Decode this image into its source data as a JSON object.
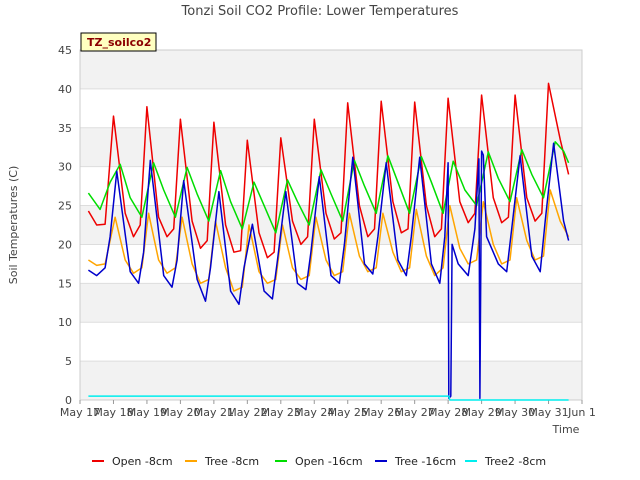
{
  "chart_data": {
    "type": "line",
    "title": "Tonzi Soil CO2 Profile: Lower Temperatures",
    "xlabel": "Time",
    "ylabel": "Soil Temperatures (C)",
    "site_badge": "TZ_soilco2",
    "ylim": [
      0,
      45
    ],
    "yticks": [
      0,
      5,
      10,
      15,
      20,
      25,
      30,
      35,
      40,
      45
    ],
    "xlim": [
      0,
      15
    ],
    "xticks": [
      0,
      1,
      2,
      3,
      4,
      5,
      6,
      7,
      8,
      9,
      10,
      11,
      12,
      13,
      14,
      15
    ],
    "xtick_labels": [
      "May 17",
      "May 18",
      "May 19",
      "May 20",
      "May 21",
      "May 22",
      "May 23",
      "May 24",
      "May 25",
      "May 26",
      "May 27",
      "May 28",
      "May 29",
      "May 30",
      "May 31",
      "Jun 1"
    ],
    "grid": true,
    "legend_position": "bottom",
    "series": [
      {
        "name": "Open -8cm",
        "color": "#ee0000",
        "x": [
          0.25,
          0.5,
          0.75,
          1.0,
          1.35,
          1.6,
          1.8,
          2.0,
          2.35,
          2.6,
          2.8,
          3.0,
          3.35,
          3.6,
          3.8,
          4.0,
          4.35,
          4.6,
          4.8,
          5.0,
          5.35,
          5.6,
          5.8,
          6.0,
          6.35,
          6.6,
          6.8,
          7.0,
          7.35,
          7.6,
          7.8,
          8.0,
          8.35,
          8.6,
          8.8,
          9.0,
          9.35,
          9.6,
          9.8,
          10.0,
          10.35,
          10.6,
          10.8,
          11.0,
          11.35,
          11.6,
          11.8,
          12.0,
          12.35,
          12.6,
          12.8,
          13.0,
          13.35,
          13.6,
          13.8,
          14.0,
          14.35,
          14.6
        ],
        "y": [
          24.3,
          22.5,
          22.6,
          36.5,
          24.0,
          21.0,
          22.5,
          37.7,
          23.5,
          21.0,
          22.0,
          36.1,
          23.0,
          19.5,
          20.5,
          35.7,
          22.5,
          19.0,
          19.2,
          33.4,
          21.5,
          18.3,
          19.0,
          33.7,
          23.0,
          20.0,
          21.0,
          36.1,
          24.0,
          20.7,
          21.5,
          38.2,
          25.0,
          21.0,
          22.0,
          38.4,
          25.5,
          21.5,
          22.0,
          38.3,
          25.0,
          21.0,
          22.0,
          38.8,
          25.5,
          22.8,
          24.0,
          39.2,
          26.0,
          22.8,
          23.5,
          39.2,
          26.0,
          23.0,
          24.0,
          40.7,
          33.5,
          29.0
        ]
      },
      {
        "name": "Tree -8cm",
        "color": "#ffa500",
        "x": [
          0.25,
          0.5,
          0.75,
          1.05,
          1.35,
          1.6,
          1.85,
          2.05,
          2.35,
          2.6,
          2.85,
          3.05,
          3.35,
          3.6,
          3.85,
          4.05,
          4.35,
          4.6,
          4.85,
          5.05,
          5.35,
          5.6,
          5.85,
          6.05,
          6.35,
          6.6,
          6.85,
          7.05,
          7.35,
          7.6,
          7.85,
          8.05,
          8.35,
          8.6,
          8.85,
          9.05,
          9.35,
          9.6,
          9.85,
          10.05,
          10.35,
          10.6,
          10.85,
          11.05,
          11.35,
          11.6,
          11.85,
          12.05,
          12.35,
          12.6,
          12.85,
          13.05,
          13.35,
          13.6,
          13.85,
          14.05,
          14.35,
          14.6
        ],
        "y": [
          18.0,
          17.3,
          17.5,
          23.5,
          18.0,
          16.3,
          17.0,
          24.0,
          18.0,
          16.3,
          17.0,
          23.5,
          17.5,
          15.0,
          15.5,
          23.0,
          17.0,
          14.0,
          14.5,
          22.5,
          16.5,
          15.0,
          15.5,
          22.5,
          17.0,
          15.5,
          16.0,
          23.5,
          18.0,
          16.0,
          16.5,
          24.0,
          18.5,
          16.5,
          17.0,
          24.0,
          19.0,
          16.5,
          17.0,
          24.5,
          18.5,
          16.0,
          17.0,
          25.0,
          19.5,
          17.5,
          18.0,
          25.5,
          20.0,
          17.5,
          18.0,
          26.0,
          20.5,
          18.0,
          18.5,
          27.0,
          23.0,
          21.0
        ]
      },
      {
        "name": "Open -16cm",
        "color": "#00dd00",
        "x": [
          0.25,
          0.6,
          0.9,
          1.2,
          1.5,
          1.85,
          2.2,
          2.5,
          2.85,
          3.2,
          3.5,
          3.85,
          4.2,
          4.5,
          4.85,
          5.2,
          5.5,
          5.85,
          6.2,
          6.5,
          6.85,
          7.2,
          7.5,
          7.85,
          8.2,
          8.5,
          8.85,
          9.2,
          9.5,
          9.85,
          10.2,
          10.5,
          10.85,
          11.15,
          11.5,
          11.85,
          12.2,
          12.5,
          12.85,
          13.2,
          13.5,
          13.85,
          14.2,
          14.45,
          14.6
        ],
        "y": [
          26.6,
          24.5,
          28.0,
          30.3,
          26.0,
          23.5,
          30.5,
          27.0,
          23.5,
          29.9,
          26.5,
          23.0,
          29.5,
          25.5,
          22.0,
          28.0,
          25.0,
          21.5,
          28.3,
          25.5,
          22.5,
          29.6,
          26.5,
          23.0,
          30.8,
          27.5,
          24.0,
          31.4,
          28.0,
          24.0,
          31.3,
          28.0,
          24.0,
          30.7,
          27.0,
          25.0,
          31.9,
          28.5,
          25.5,
          32.2,
          29.0,
          26.0,
          33.2,
          32.0,
          30.5
        ]
      },
      {
        "name": "Tree -16cm",
        "color": "#0000cc",
        "x": [
          0.25,
          0.5,
          0.75,
          0.9,
          1.1,
          1.5,
          1.75,
          1.9,
          2.1,
          2.5,
          2.75,
          2.9,
          3.1,
          3.5,
          3.75,
          3.9,
          4.15,
          4.5,
          4.75,
          4.9,
          5.15,
          5.5,
          5.75,
          5.9,
          6.15,
          6.5,
          6.75,
          6.9,
          7.15,
          7.5,
          7.75,
          7.9,
          8.15,
          8.5,
          8.75,
          8.9,
          9.15,
          9.5,
          9.75,
          9.9,
          10.15,
          10.5,
          10.75,
          10.9,
          11.0,
          11.02,
          11.08,
          11.12,
          11.3,
          11.6,
          11.8,
          11.92,
          11.95,
          12.0,
          12.05,
          12.15,
          12.5,
          12.75,
          12.9,
          13.15,
          13.5,
          13.75,
          13.9,
          14.15,
          14.45,
          14.6
        ],
        "y": [
          16.7,
          16.0,
          17.0,
          21.0,
          29.4,
          16.5,
          15.0,
          19.0,
          30.8,
          16.0,
          14.5,
          18.0,
          28.2,
          15.5,
          12.7,
          17.0,
          26.8,
          14.0,
          12.3,
          17.0,
          22.6,
          14.0,
          13.0,
          18.0,
          26.8,
          15.0,
          14.2,
          19.0,
          28.7,
          16.0,
          15.0,
          20.0,
          31.2,
          17.5,
          16.2,
          21.0,
          30.5,
          18.0,
          16.0,
          21.0,
          31.2,
          17.5,
          15.0,
          21.0,
          30.5,
          0.2,
          0.5,
          20.0,
          17.5,
          16.0,
          22.0,
          31.0,
          0.2,
          32.0,
          31.5,
          21.0,
          17.5,
          16.5,
          22.0,
          31.4,
          18.5,
          16.5,
          23.0,
          33.0,
          23.0,
          20.5
        ]
      },
      {
        "name": "Tree2 -8cm",
        "color": "#00eeee",
        "x": [
          0.25,
          5.0,
          10.0,
          11.02,
          11.05,
          12.0,
          13.0,
          14.0,
          14.6
        ],
        "y": [
          0.5,
          0.5,
          0.5,
          0.5,
          0.0,
          0.0,
          0.0,
          0.0,
          0.0
        ]
      }
    ]
  }
}
